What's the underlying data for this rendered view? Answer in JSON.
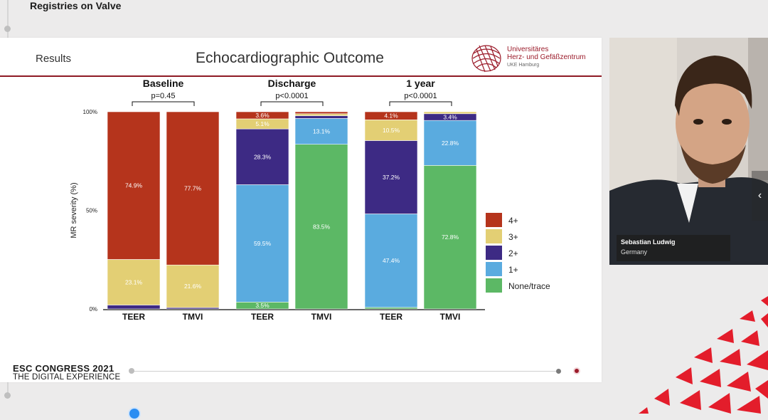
{
  "header": {
    "title": "Registries on Valve"
  },
  "slide": {
    "section": "Results",
    "title": "Echocardiographic Outcome",
    "logo": {
      "line1": "Universitäres",
      "line2": "Herz- und Gefäßzentrum",
      "line3": "UKE Hamburg"
    },
    "footer": {
      "brand": "ESC CONGRESS 2021",
      "tagline": "THE DIGITAL EXPERIENCE"
    }
  },
  "presenter": {
    "name": "Sebastian Ludwig",
    "country": "Germany"
  },
  "colors": {
    "4+": "#b5341c",
    "3+": "#e3cf74",
    "2+": "#3d2a84",
    "1+": "#5aabdf",
    "none": "#5cb865",
    "accent": "#8e1a24"
  },
  "chart_data": {
    "type": "bar",
    "stacked": true,
    "ylabel": "MR severity (%)",
    "yticks": [
      "0%",
      "50%",
      "100%"
    ],
    "ylim": [
      0,
      100
    ],
    "legend_position": "right",
    "groups": [
      {
        "title": "Baseline",
        "p": "p=0.45",
        "bars": [
          {
            "label": "TEER",
            "values": {
              "none": 0,
              "1+": 0,
              "2+": 2.0,
              "3+": 23.1,
              "4+": 74.9
            }
          },
          {
            "label": "TMVI",
            "values": {
              "none": 0,
              "1+": 0,
              "2+": 0.7,
              "3+": 21.6,
              "4+": 77.7
            }
          }
        ]
      },
      {
        "title": "Discharge",
        "p": "p<0.0001",
        "bars": [
          {
            "label": "TEER",
            "values": {
              "none": 3.5,
              "1+": 59.5,
              "2+": 28.3,
              "3+": 5.1,
              "4+": 3.6
            }
          },
          {
            "label": "TMVI",
            "values": {
              "none": 83.5,
              "1+": 13.1,
              "2+": 1.4,
              "3+": 1.0,
              "4+": 1.0
            }
          }
        ]
      },
      {
        "title": "1 year",
        "p": "p<0.0001",
        "bars": [
          {
            "label": "TEER",
            "values": {
              "none": 0.8,
              "1+": 47.4,
              "2+": 37.2,
              "3+": 10.5,
              "4+": 4.1
            }
          },
          {
            "label": "TMVI",
            "values": {
              "none": 72.8,
              "1+": 22.8,
              "2+": 3.4,
              "3+": 1.0,
              "4+": 0
            }
          }
        ]
      }
    ],
    "data_labels": [
      {
        "group": 0,
        "bar": 0,
        "category": "4+",
        "text": "74.9%"
      },
      {
        "group": 0,
        "bar": 0,
        "category": "3+",
        "text": "23.1%"
      },
      {
        "group": 0,
        "bar": 1,
        "category": "4+",
        "text": "77.7%"
      },
      {
        "group": 0,
        "bar": 1,
        "category": "3+",
        "text": "21.6%"
      },
      {
        "group": 1,
        "bar": 0,
        "category": "4+",
        "text": "3.6%"
      },
      {
        "group": 1,
        "bar": 0,
        "category": "3+",
        "text": "5.1%"
      },
      {
        "group": 1,
        "bar": 0,
        "category": "2+",
        "text": "28.3%"
      },
      {
        "group": 1,
        "bar": 0,
        "category": "1+",
        "text": "59.5%"
      },
      {
        "group": 1,
        "bar": 0,
        "category": "none",
        "text": "3.5%"
      },
      {
        "group": 1,
        "bar": 1,
        "category": "1+",
        "text": "13.1%"
      },
      {
        "group": 1,
        "bar": 1,
        "category": "none",
        "text": "83.5%"
      },
      {
        "group": 2,
        "bar": 0,
        "category": "4+",
        "text": "4.1%"
      },
      {
        "group": 2,
        "bar": 0,
        "category": "3+",
        "text": "10.5%"
      },
      {
        "group": 2,
        "bar": 0,
        "category": "2+",
        "text": "37.2%"
      },
      {
        "group": 2,
        "bar": 0,
        "category": "1+",
        "text": "47.4%"
      },
      {
        "group": 2,
        "bar": 1,
        "category": "2+",
        "text": "3.4%"
      },
      {
        "group": 2,
        "bar": 1,
        "category": "1+",
        "text": "22.8%"
      },
      {
        "group": 2,
        "bar": 1,
        "category": "none",
        "text": "72.8%"
      }
    ],
    "legend": [
      {
        "key": "4+",
        "label": "4+"
      },
      {
        "key": "3+",
        "label": "3+"
      },
      {
        "key": "2+",
        "label": "2+"
      },
      {
        "key": "1+",
        "label": "1+"
      },
      {
        "key": "none",
        "label": "None/trace"
      }
    ]
  }
}
